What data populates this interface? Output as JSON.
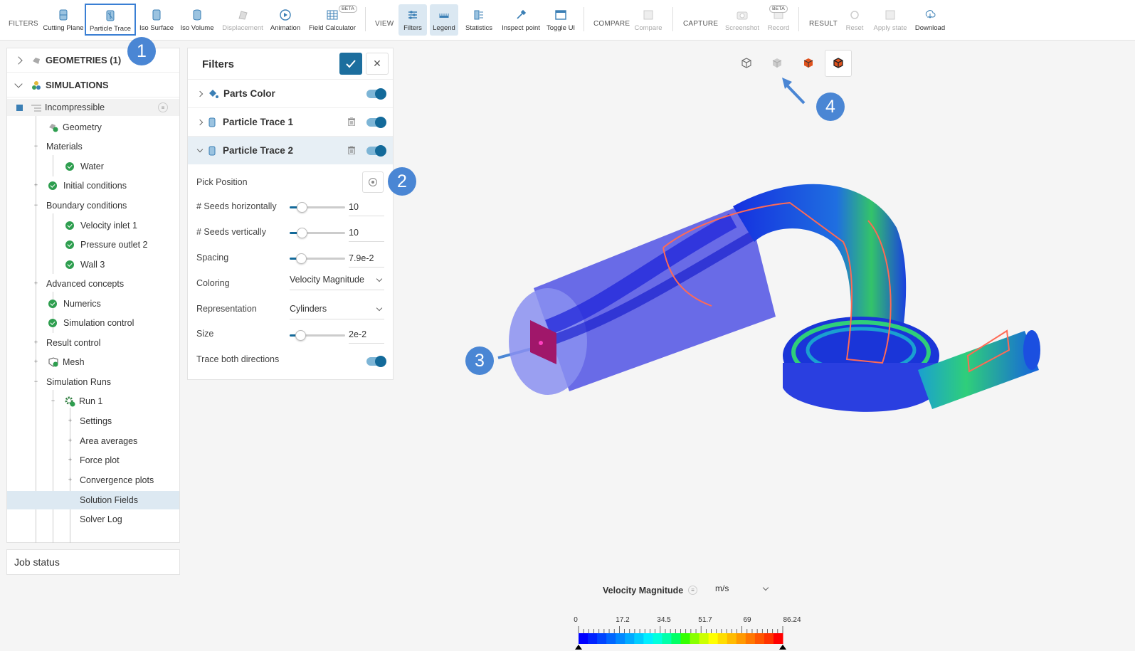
{
  "toolbar": {
    "groups": {
      "filters": "FILTERS",
      "view": "VIEW",
      "compare": "COMPARE",
      "capture": "CAPTURE",
      "result": "RESULT"
    },
    "buttons": {
      "cutting_plane": "Cutting Plane",
      "particle_trace": "Particle Trace",
      "iso_surface": "Iso Surface",
      "iso_volume": "Iso Volume",
      "displacement": "Displacement",
      "animation": "Animation",
      "field_calculator": "Field Calculator",
      "filters": "Filters",
      "legend": "Legend",
      "statistics": "Statistics",
      "inspect_point": "Inspect point",
      "toggle_ui": "Toggle UI",
      "compare": "Compare",
      "screenshot": "Screenshot",
      "record": "Record",
      "reset": "Reset",
      "apply_state": "Apply state",
      "download": "Download"
    },
    "beta_label": "BETA"
  },
  "tree": {
    "geometries": "GEOMETRIES (1)",
    "simulations": "SIMULATIONS",
    "simulation_name": "Incompressible",
    "items": {
      "geometry": "Geometry",
      "materials": "Materials",
      "water": "Water",
      "initial_conditions": "Initial conditions",
      "boundary_conditions": "Boundary conditions",
      "velocity_inlet": "Velocity inlet 1",
      "pressure_outlet": "Pressure outlet 2",
      "wall": "Wall 3",
      "advanced_concepts": "Advanced concepts",
      "numerics": "Numerics",
      "simulation_control": "Simulation control",
      "result_control": "Result control",
      "mesh": "Mesh",
      "simulation_runs": "Simulation Runs",
      "run1": "Run 1",
      "settings": "Settings",
      "area_averages": "Area averages",
      "force_plot": "Force plot",
      "convergence_plots": "Convergence plots",
      "solution_fields": "Solution Fields",
      "solver_log": "Solver Log"
    }
  },
  "job_status": "Job status",
  "filters_panel": {
    "title": "Filters",
    "rows": {
      "parts_color": "Parts Color",
      "particle_trace_1": "Particle Trace 1",
      "particle_trace_2": "Particle Trace 2"
    },
    "props": {
      "pick_position": "Pick Position",
      "seeds_h_label": "# Seeds horizontally",
      "seeds_h_value": "10",
      "seeds_v_label": "# Seeds vertically",
      "seeds_v_value": "10",
      "spacing_label": "Spacing",
      "spacing_value": "7.9e-2",
      "coloring_label": "Coloring",
      "coloring_value": "Velocity Magnitude",
      "representation_label": "Representation",
      "representation_value": "Cylinders",
      "size_label": "Size",
      "size_value": "2e-2",
      "trace_both_label": "Trace both directions"
    }
  },
  "badges": [
    "1",
    "2",
    "3",
    "4"
  ],
  "legend": {
    "title": "Velocity Magnitude",
    "unit": "m/s",
    "ticks": [
      "0",
      "17.2",
      "34.5",
      "51.7",
      "69",
      "86.24"
    ]
  },
  "colors": {
    "accent": "#136a9a",
    "badge": "#4a86d4",
    "highlight": "#3a7fd4",
    "check": "#2e9e4f"
  }
}
